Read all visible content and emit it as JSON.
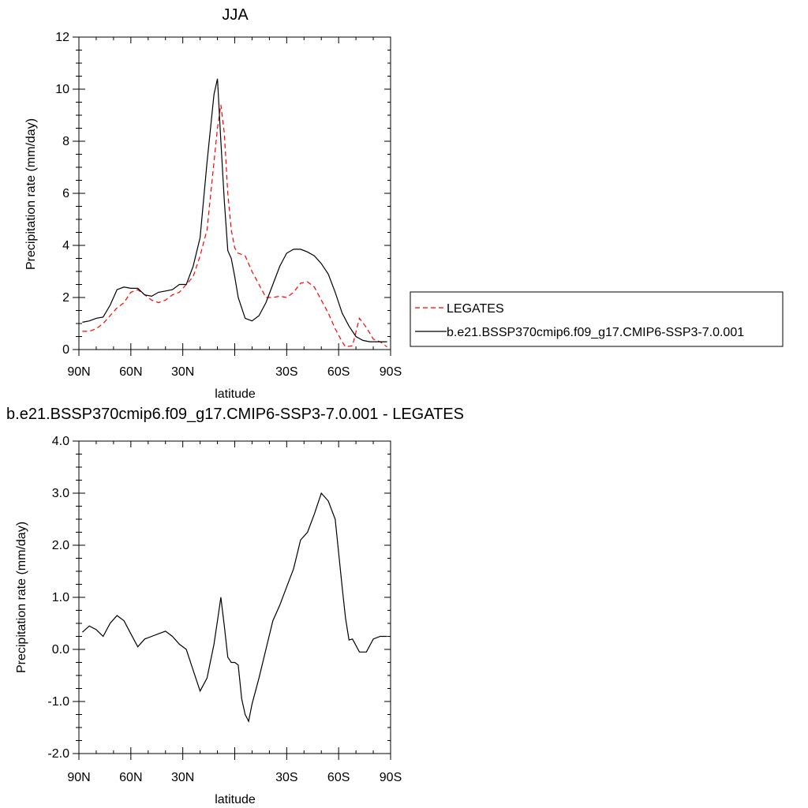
{
  "chart_data": [
    {
      "type": "line",
      "title": "JJA",
      "xlabel": "latitude",
      "ylabel": "Precipitation rate (mm/day)",
      "xlim": [
        90,
        -90
      ],
      "ylim": [
        0,
        12
      ],
      "yticks": [
        0,
        2,
        4,
        6,
        8,
        10,
        12
      ],
      "ytick_labels": [
        "0",
        "2",
        "4",
        "6",
        "8",
        "10",
        "12"
      ],
      "xticks": [
        90,
        60,
        30,
        0,
        -30,
        -60,
        -90
      ],
      "xtick_labels": [
        "90N",
        "60N",
        "30N",
        "",
        "30S",
        "60S",
        "90S"
      ],
      "legend_position": "outside-right",
      "series": [
        {
          "name": "LEGATES",
          "color": "#ff0000",
          "dash": "dashed",
          "x": [
            88,
            84,
            80,
            76,
            72,
            68,
            64,
            60,
            56,
            52,
            48,
            44,
            40,
            36,
            32,
            28,
            24,
            20,
            16,
            12,
            10,
            8,
            6,
            4,
            2,
            0,
            -2,
            -6,
            -10,
            -14,
            -18,
            -22,
            -26,
            -30,
            -34,
            -38,
            -42,
            -46,
            -50,
            -54,
            -58,
            -62,
            -64,
            -68,
            -72,
            -76,
            -80,
            -84,
            -88
          ],
          "y": [
            0.7,
            0.7,
            0.8,
            1.0,
            1.3,
            1.6,
            1.8,
            2.2,
            2.3,
            2.1,
            1.9,
            1.8,
            1.9,
            2.1,
            2.2,
            2.5,
            2.8,
            3.6,
            4.6,
            7.2,
            8.5,
            9.4,
            8.3,
            6.0,
            4.6,
            3.9,
            3.7,
            3.6,
            3.0,
            2.5,
            2.0,
            2.0,
            2.05,
            2.0,
            2.2,
            2.55,
            2.6,
            2.4,
            1.9,
            1.4,
            0.8,
            0.3,
            0.1,
            0.15,
            1.2,
            0.85,
            0.4,
            0.3,
            0.1
          ]
        },
        {
          "name": "b.e21.BSSP370cmip6.f09_g17.CMIP6-SSP3-7.0.001",
          "color": "#000000",
          "dash": "solid",
          "x": [
            88,
            84,
            80,
            76,
            72,
            68,
            64,
            60,
            56,
            52,
            48,
            44,
            40,
            36,
            32,
            28,
            24,
            20,
            16,
            12,
            10,
            8,
            6,
            4,
            2,
            0,
            -2,
            -6,
            -10,
            -14,
            -18,
            -22,
            -26,
            -30,
            -34,
            -38,
            -42,
            -46,
            -50,
            -54,
            -58,
            -62,
            -66,
            -70,
            -74,
            -78,
            -82,
            -86,
            -88
          ],
          "y": [
            1.05,
            1.1,
            1.2,
            1.25,
            1.7,
            2.3,
            2.4,
            2.35,
            2.35,
            2.1,
            2.05,
            2.2,
            2.25,
            2.3,
            2.5,
            2.5,
            3.2,
            4.3,
            7.2,
            9.8,
            10.4,
            8.0,
            5.7,
            3.8,
            3.5,
            2.8,
            2.0,
            1.2,
            1.1,
            1.3,
            1.8,
            2.5,
            3.2,
            3.7,
            3.85,
            3.85,
            3.75,
            3.6,
            3.3,
            2.9,
            2.2,
            1.4,
            0.9,
            0.5,
            0.35,
            0.3,
            0.3,
            0.3,
            0.3
          ]
        }
      ]
    },
    {
      "type": "line",
      "title": "b.e21.BSSP370cmip6.f09_g17.CMIP6-SSP3-7.0.001 - LEGATES",
      "xlabel": "latitude",
      "ylabel": "Precipitation rate (mm/day)",
      "xlim": [
        90,
        -90
      ],
      "ylim": [
        -2,
        4
      ],
      "yticks": [
        -2,
        -1,
        0,
        1,
        2,
        3,
        4
      ],
      "ytick_labels": [
        "-2.0",
        "-1.0",
        "0.0",
        "1.0",
        "2.0",
        "3.0",
        "4.0"
      ],
      "xticks": [
        90,
        60,
        30,
        0,
        -30,
        -60,
        -90
      ],
      "xtick_labels": [
        "90N",
        "60N",
        "30N",
        "",
        "30S",
        "60S",
        "90S"
      ],
      "series": [
        {
          "color": "#000000",
          "dash": "solid",
          "x": [
            88,
            84,
            80,
            76,
            72,
            68,
            64,
            60,
            56,
            52,
            48,
            44,
            40,
            36,
            32,
            28,
            24,
            20,
            16,
            12,
            10,
            8,
            6,
            4,
            2,
            0,
            -2,
            -4,
            -6,
            -8,
            -10,
            -12,
            -14,
            -18,
            -22,
            -26,
            -30,
            -34,
            -38,
            -42,
            -46,
            -50,
            -54,
            -58,
            -62,
            -64,
            -66,
            -68,
            -72,
            -76,
            -80,
            -84,
            -88
          ],
          "y": [
            0.33,
            0.45,
            0.38,
            0.25,
            0.5,
            0.65,
            0.55,
            0.3,
            0.05,
            0.2,
            0.25,
            0.3,
            0.35,
            0.25,
            0.1,
            0.0,
            -0.4,
            -0.8,
            -0.55,
            0.1,
            0.55,
            1.0,
            0.45,
            -0.15,
            -0.25,
            -0.25,
            -0.3,
            -0.95,
            -1.25,
            -1.38,
            -1.05,
            -0.8,
            -0.55,
            0.0,
            0.55,
            0.85,
            1.2,
            1.55,
            2.1,
            2.25,
            2.6,
            3.0,
            2.85,
            2.5,
            1.2,
            0.6,
            0.18,
            0.2,
            -0.05,
            -0.05,
            0.2,
            0.25,
            0.25
          ]
        }
      ]
    }
  ]
}
